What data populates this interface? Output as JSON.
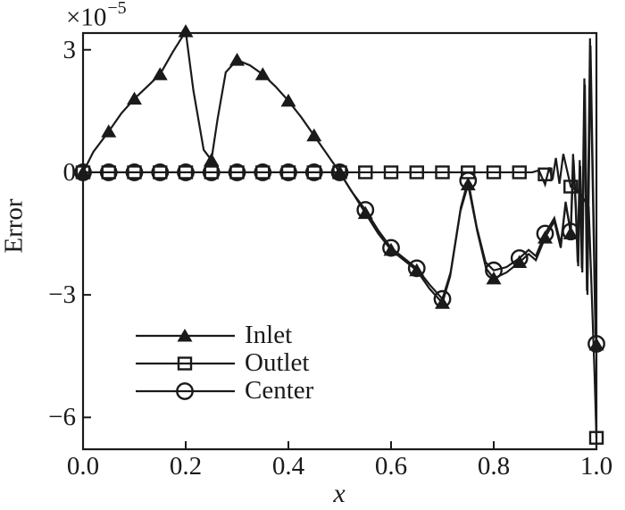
{
  "figure": {
    "background": "#ffffff",
    "ink_color": "#1a1a1a"
  },
  "chart_data": {
    "type": "line",
    "title": "",
    "xlabel": "x",
    "ylabel": "Error",
    "y_axis_multiplier": {
      "base": "×10",
      "exponent": "−5"
    },
    "xlim": [
      0,
      1
    ],
    "ylim": [
      -6.78,
      3.41
    ],
    "xticks": {
      "values": [
        0,
        0.2,
        0.4,
        0.6,
        0.8,
        1.0
      ],
      "labels": [
        "0.0",
        "0.2",
        "0.4",
        "0.6",
        "0.8",
        "1.0"
      ]
    },
    "yticks": {
      "values": [
        3,
        0,
        -3,
        -6
      ],
      "labels": [
        "3",
        "0",
        "−3",
        "−6"
      ]
    },
    "grid": false,
    "frame": "box",
    "legend": {
      "position": "inside lower left"
    },
    "series": [
      {
        "name": "Inlet",
        "marker": "triangle-filled",
        "color": "#1a1a1a",
        "marker_points": [
          [
            0,
            0
          ],
          [
            0.05,
            1.0
          ],
          [
            0.1,
            1.8
          ],
          [
            0.15,
            2.4
          ],
          [
            0.2,
            3.45
          ],
          [
            0.25,
            0.3
          ],
          [
            0.3,
            2.75
          ],
          [
            0.35,
            2.4
          ],
          [
            0.4,
            1.75
          ],
          [
            0.45,
            0.9
          ],
          [
            0.5,
            0
          ],
          [
            0.55,
            -1.0
          ],
          [
            0.6,
            -1.9
          ],
          [
            0.65,
            -2.4
          ],
          [
            0.7,
            -3.2
          ],
          [
            0.75,
            -0.3
          ],
          [
            0.8,
            -2.6
          ],
          [
            0.85,
            -2.2
          ],
          [
            0.9,
            -1.6
          ],
          [
            0.95,
            -1.5
          ],
          [
            1.0,
            -4.22
          ]
        ],
        "line_points": [
          [
            0,
            0
          ],
          [
            0.02,
            0.5
          ],
          [
            0.05,
            1.0
          ],
          [
            0.075,
            1.45
          ],
          [
            0.1,
            1.8
          ],
          [
            0.125,
            2.1
          ],
          [
            0.15,
            2.4
          ],
          [
            0.175,
            2.95
          ],
          [
            0.2,
            3.45
          ],
          [
            0.215,
            2.0
          ],
          [
            0.235,
            0.55
          ],
          [
            0.25,
            0.3
          ],
          [
            0.262,
            1.3
          ],
          [
            0.278,
            2.45
          ],
          [
            0.3,
            2.75
          ],
          [
            0.325,
            2.62
          ],
          [
            0.35,
            2.4
          ],
          [
            0.375,
            2.1
          ],
          [
            0.4,
            1.75
          ],
          [
            0.425,
            1.35
          ],
          [
            0.45,
            0.9
          ],
          [
            0.475,
            0.45
          ],
          [
            0.5,
            0
          ],
          [
            0.525,
            -0.5
          ],
          [
            0.55,
            -1.0
          ],
          [
            0.575,
            -1.5
          ],
          [
            0.6,
            -1.9
          ],
          [
            0.625,
            -2.15
          ],
          [
            0.65,
            -2.4
          ],
          [
            0.675,
            -2.85
          ],
          [
            0.7,
            -3.2
          ],
          [
            0.715,
            -2.55
          ],
          [
            0.735,
            -0.95
          ],
          [
            0.75,
            -0.3
          ],
          [
            0.768,
            -1.45
          ],
          [
            0.785,
            -2.35
          ],
          [
            0.8,
            -2.6
          ],
          [
            0.825,
            -2.45
          ],
          [
            0.85,
            -2.2
          ],
          [
            0.868,
            -2.0
          ],
          [
            0.882,
            -2.15
          ],
          [
            0.9,
            -1.6
          ],
          [
            0.918,
            -1.2
          ],
          [
            0.9305,
            -1.85
          ],
          [
            0.94,
            -0.72
          ],
          [
            0.95,
            -1.5
          ],
          [
            0.9545,
            0.45
          ],
          [
            0.9595,
            -0.85
          ],
          [
            0.9635,
            -2.2
          ],
          [
            0.9675,
            0.3
          ],
          [
            0.9715,
            -2.35
          ],
          [
            0.9765,
            2.3
          ],
          [
            0.9815,
            -2.9
          ],
          [
            0.9875,
            3.28
          ],
          [
            0.998,
            -3.9
          ],
          [
            1.0,
            -4.22
          ]
        ]
      },
      {
        "name": "Outlet",
        "marker": "square-open",
        "color": "#1a1a1a",
        "marker_points": [
          [
            0,
            0
          ],
          [
            0.05,
            0
          ],
          [
            0.1,
            0
          ],
          [
            0.15,
            0
          ],
          [
            0.2,
            0
          ],
          [
            0.25,
            0
          ],
          [
            0.3,
            0
          ],
          [
            0.35,
            0
          ],
          [
            0.4,
            0
          ],
          [
            0.45,
            0
          ],
          [
            0.5,
            0
          ],
          [
            0.55,
            0
          ],
          [
            0.6,
            0
          ],
          [
            0.65,
            0
          ],
          [
            0.7,
            0
          ],
          [
            0.75,
            0
          ],
          [
            0.8,
            0
          ],
          [
            0.85,
            0
          ],
          [
            0.9,
            -0.05
          ],
          [
            0.95,
            -0.35
          ],
          [
            1.0,
            -6.5
          ]
        ],
        "line_points": [
          [
            0,
            0
          ],
          [
            0.875,
            0
          ],
          [
            0.888,
            0.05
          ],
          [
            0.9,
            -0.3
          ],
          [
            0.908,
            0.12
          ],
          [
            0.9145,
            -0.18
          ],
          [
            0.921,
            0.35
          ],
          [
            0.928,
            -0.28
          ],
          [
            0.9355,
            0.45
          ],
          [
            0.95,
            -0.35
          ],
          [
            0.968,
            -0.5
          ],
          [
            0.985,
            -0.85
          ],
          [
            0.9965,
            -5.0
          ],
          [
            1.0,
            -6.5
          ]
        ]
      },
      {
        "name": "Center",
        "marker": "circle-open",
        "color": "#1a1a1a",
        "marker_points": [
          [
            0,
            0
          ],
          [
            0.05,
            0
          ],
          [
            0.1,
            0
          ],
          [
            0.15,
            0
          ],
          [
            0.2,
            0
          ],
          [
            0.25,
            0
          ],
          [
            0.3,
            0
          ],
          [
            0.35,
            0
          ],
          [
            0.4,
            0
          ],
          [
            0.45,
            0
          ],
          [
            0.5,
            0
          ],
          [
            0.55,
            -0.92
          ],
          [
            0.6,
            -1.85
          ],
          [
            0.65,
            -2.35
          ],
          [
            0.7,
            -3.1
          ],
          [
            0.75,
            -0.2
          ],
          [
            0.8,
            -2.4
          ],
          [
            0.85,
            -2.1
          ],
          [
            0.9,
            -1.5
          ],
          [
            0.95,
            -1.45
          ],
          [
            1.0,
            -4.2
          ]
        ],
        "line_points": [
          [
            0,
            0
          ],
          [
            0.5,
            0
          ],
          [
            0.522,
            -0.45
          ],
          [
            0.55,
            -0.92
          ],
          [
            0.575,
            -1.42
          ],
          [
            0.6,
            -1.85
          ],
          [
            0.625,
            -2.1
          ],
          [
            0.65,
            -2.35
          ],
          [
            0.675,
            -2.75
          ],
          [
            0.7,
            -3.1
          ],
          [
            0.716,
            -2.45
          ],
          [
            0.736,
            -0.85
          ],
          [
            0.75,
            -0.2
          ],
          [
            0.767,
            -1.35
          ],
          [
            0.784,
            -2.2
          ],
          [
            0.8,
            -2.4
          ],
          [
            0.825,
            -2.32
          ],
          [
            0.85,
            -2.1
          ],
          [
            0.868,
            -1.9
          ],
          [
            0.882,
            -2.05
          ],
          [
            0.9,
            -1.5
          ],
          [
            0.918,
            -1.12
          ],
          [
            0.9305,
            -1.75
          ],
          [
            0.94,
            -0.78
          ],
          [
            0.95,
            -1.45
          ],
          [
            0.9555,
            0.3
          ],
          [
            0.9605,
            -0.95
          ],
          [
            0.9645,
            -2.3
          ],
          [
            0.9685,
            0.15
          ],
          [
            0.9725,
            -2.45
          ],
          [
            0.9775,
            2.15
          ],
          [
            0.9825,
            -3.0
          ],
          [
            0.9885,
            3.1
          ],
          [
            0.9985,
            -3.95
          ],
          [
            1.0,
            -4.2
          ]
        ]
      }
    ]
  }
}
